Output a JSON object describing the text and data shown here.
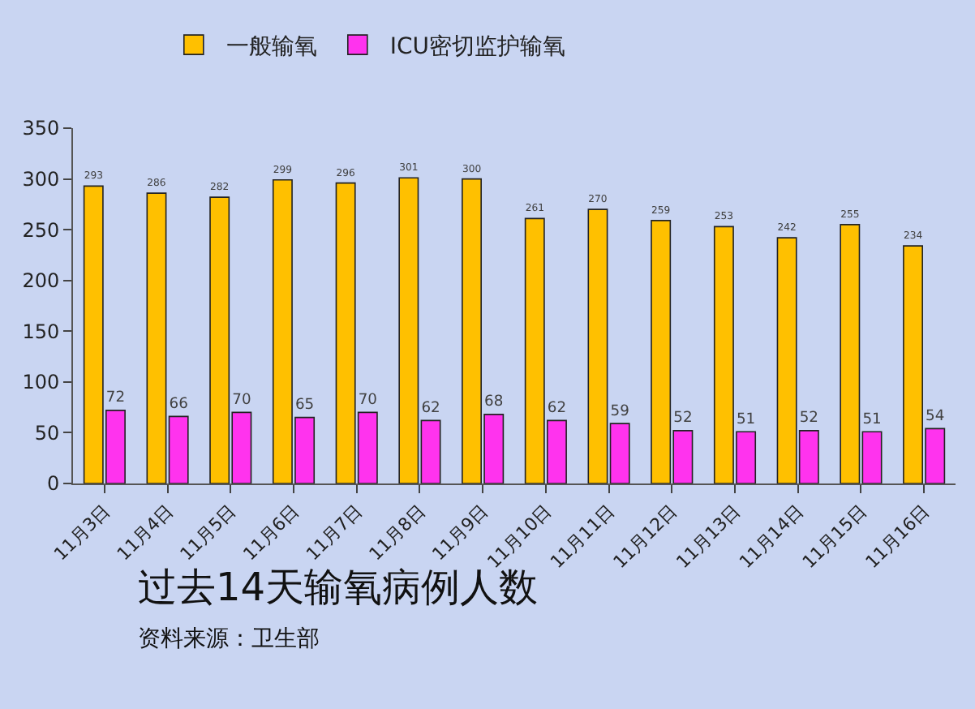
{
  "chart_data": {
    "type": "bar",
    "title": "过去14天输氧病例人数",
    "annotations": [
      "资料来源：卫生部"
    ],
    "categories": [
      "11月3日",
      "11月4日",
      "11月5日",
      "11月6日",
      "11月7日",
      "11月8日",
      "11月9日",
      "11月10日",
      "11月11日",
      "11月12日",
      "11月13日",
      "11月14日",
      "11月15日",
      "11月16日"
    ],
    "series": [
      {
        "name": "一般输氧",
        "color": "#ffc000",
        "values": [
          293,
          286,
          282,
          299,
          296,
          301,
          300,
          261,
          270,
          259,
          253,
          242,
          255,
          234
        ]
      },
      {
        "name": "ICU密切监护输氧",
        "color": "#ff33ee",
        "values": [
          72,
          66,
          70,
          65,
          70,
          62,
          68,
          62,
          59,
          52,
          51,
          52,
          51,
          54
        ]
      }
    ],
    "ylim": [
      0,
      350
    ],
    "yticks": [
      0,
      50,
      100,
      150,
      200,
      250,
      300,
      350
    ],
    "data_labels": true,
    "grid": false,
    "legend": "top left"
  }
}
